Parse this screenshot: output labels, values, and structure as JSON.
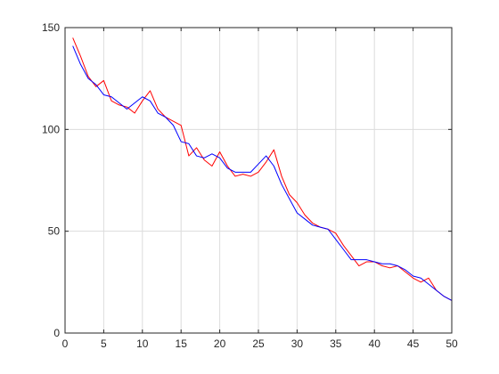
{
  "chart_data": {
    "type": "line",
    "title": "",
    "xlabel": "",
    "ylabel": "",
    "xlim": [
      0,
      50
    ],
    "ylim": [
      0,
      150
    ],
    "xticks": [
      0,
      5,
      10,
      15,
      20,
      25,
      30,
      35,
      40,
      45,
      50
    ],
    "yticks": [
      0,
      50,
      100,
      150
    ],
    "xtick_labels": [
      "0",
      "5",
      "10",
      "15",
      "20",
      "25",
      "30",
      "35",
      "40",
      "45",
      "50"
    ],
    "ytick_labels": [
      "0",
      "50",
      "100",
      "150"
    ],
    "grid": true,
    "legend": "none",
    "x": [
      1,
      2,
      3,
      4,
      5,
      6,
      7,
      8,
      9,
      10,
      11,
      12,
      13,
      14,
      15,
      16,
      17,
      18,
      19,
      20,
      21,
      22,
      23,
      24,
      25,
      26,
      27,
      28,
      29,
      30,
      31,
      32,
      33,
      34,
      35,
      36,
      37,
      38,
      39,
      40,
      41,
      42,
      43,
      44,
      45,
      46,
      47,
      48,
      49,
      50
    ],
    "series": [
      {
        "color": "#ff0000",
        "values": [
          145,
          136,
          126,
          121,
          124,
          114,
          112,
          111,
          108,
          114,
          119,
          110,
          106,
          104,
          102,
          87,
          91,
          85,
          82,
          89,
          82,
          77,
          78,
          77,
          79,
          84,
          90,
          77,
          68,
          64,
          58,
          54,
          52,
          51,
          49,
          43,
          38,
          33,
          35,
          35,
          33,
          32,
          33,
          30,
          27,
          25,
          27,
          21,
          18,
          16
        ]
      },
      {
        "color": "#0000ff",
        "values": [
          141,
          132,
          125,
          122,
          117,
          116,
          113,
          110,
          113,
          116,
          114,
          108,
          106,
          102,
          94,
          93,
          87,
          86,
          88,
          86,
          81,
          79,
          79,
          79,
          83,
          87,
          82,
          73,
          66,
          59,
          56,
          53,
          52,
          51,
          46,
          41,
          36,
          36,
          36,
          35,
          34,
          34,
          33,
          31,
          28,
          27,
          24,
          21,
          18,
          16
        ]
      }
    ]
  }
}
